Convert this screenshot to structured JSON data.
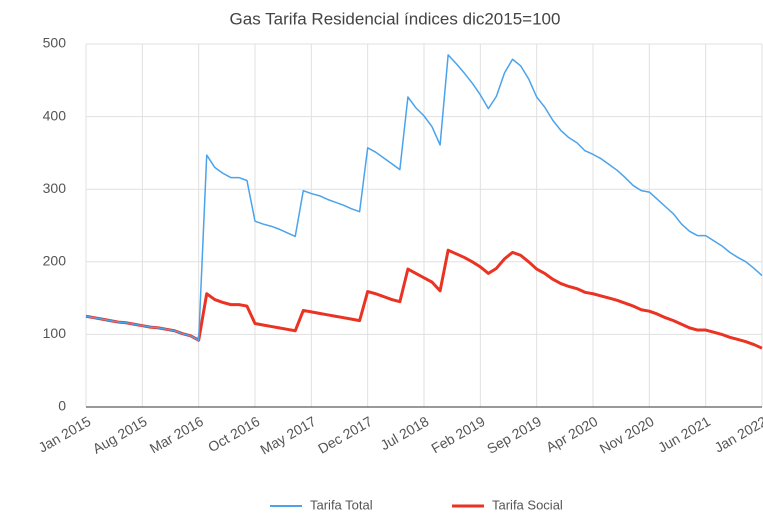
{
  "chart_data": {
    "type": "line",
    "title": "Gas Tarifa Residencial índices dic2015=100",
    "categories": [
      "Jan 2015",
      null,
      null,
      null,
      null,
      null,
      null,
      "Aug 2015",
      null,
      null,
      null,
      null,
      null,
      null,
      "Mar 2016",
      null,
      null,
      null,
      null,
      null,
      null,
      "Oct 2016",
      null,
      null,
      null,
      null,
      null,
      null,
      "May 2017",
      null,
      null,
      null,
      null,
      null,
      null,
      "Dec 2017",
      null,
      null,
      null,
      null,
      null,
      null,
      "Jul 2018",
      null,
      null,
      null,
      null,
      null,
      null,
      "Feb 2019",
      null,
      null,
      null,
      null,
      null,
      null,
      "Sep 2019",
      null,
      null,
      null,
      null,
      null,
      null,
      "Apr 2020",
      null,
      null,
      null,
      null,
      null,
      null,
      "Nov 2020",
      null,
      null,
      null,
      null,
      null,
      null,
      "Jun 2021",
      null,
      null,
      null,
      null,
      null,
      null,
      "Jan 2022"
    ],
    "series": [
      {
        "name": "Tarifa Total",
        "color": "#4aa3ec",
        "values": [
          125,
          123,
          121,
          119,
          117,
          116,
          114,
          112,
          110,
          109,
          107,
          105,
          101,
          98,
          92,
          347,
          330,
          322,
          316,
          316,
          312,
          256,
          252,
          249,
          245,
          240,
          235,
          298,
          294,
          291,
          286,
          282,
          278,
          273,
          269,
          357,
          351,
          343,
          335,
          327,
          427,
          412,
          401,
          386,
          361,
          485,
          473,
          460,
          446,
          430,
          411,
          428,
          460,
          479,
          470,
          452,
          427,
          413,
          395,
          381,
          371,
          364,
          353,
          348,
          342,
          334,
          326,
          316,
          305,
          298,
          296,
          286,
          276,
          266,
          252,
          242,
          236,
          236,
          229,
          222,
          213,
          206,
          200,
          191,
          181
        ]
      },
      {
        "name": "Tarifa Social",
        "color": "#ea3323",
        "values": [
          125,
          123,
          121,
          119,
          117,
          116,
          114,
          112,
          110,
          109,
          107,
          105,
          101,
          98,
          92,
          156,
          148,
          144,
          141,
          141,
          139,
          115,
          113,
          111,
          109,
          107,
          105,
          133,
          131,
          129,
          127,
          125,
          123,
          121,
          119,
          159,
          156,
          152,
          148,
          145,
          190,
          184,
          178,
          172,
          160,
          216,
          211,
          206,
          200,
          193,
          184,
          191,
          204,
          213,
          209,
          200,
          190,
          184,
          176,
          170,
          166,
          163,
          158,
          156,
          153,
          150,
          147,
          143,
          139,
          134,
          132,
          128,
          123,
          119,
          114,
          109,
          106,
          106,
          103,
          100,
          96,
          93,
          90,
          86,
          81
        ]
      }
    ],
    "ylim": [
      0,
      500
    ],
    "yticks": [
      0,
      100,
      200,
      300,
      400,
      500
    ],
    "grid": true,
    "legend": "bottom"
  }
}
